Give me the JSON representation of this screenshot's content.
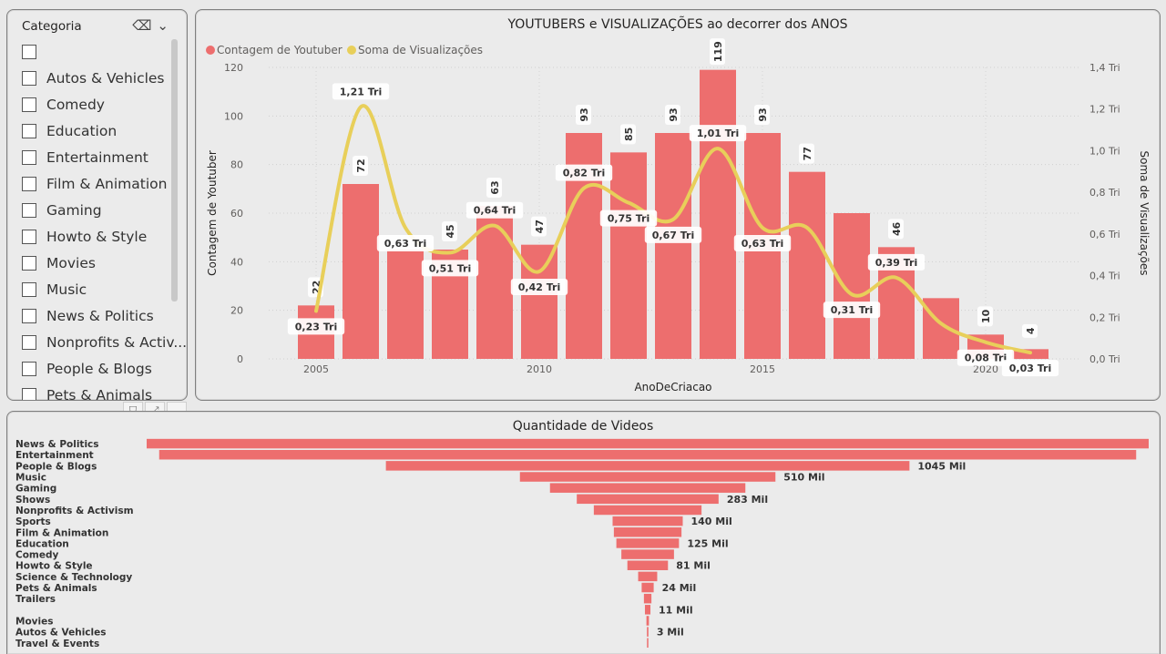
{
  "slicer": {
    "title": "Categoria",
    "items": [
      {
        "label": ""
      },
      {
        "label": "Autos & Vehicles"
      },
      {
        "label": "Comedy"
      },
      {
        "label": "Education"
      },
      {
        "label": "Entertainment"
      },
      {
        "label": "Film & Animation"
      },
      {
        "label": "Gaming"
      },
      {
        "label": "Howto & Style"
      },
      {
        "label": "Movies"
      },
      {
        "label": "Music"
      },
      {
        "label": "News & Politics"
      },
      {
        "label": "Nonprofits & Activ..."
      },
      {
        "label": "People & Blogs"
      },
      {
        "label": "Pets & Animals"
      }
    ],
    "icons": [
      "eraser-icon",
      "chevron-down-icon"
    ]
  },
  "visual_toolbar": [
    "filter-icon",
    "focus-mode-icon",
    "more-options-icon"
  ],
  "colors": {
    "bar": "#ED6E6E",
    "line": "#E8CF5A",
    "panel": "#EBEBEB"
  },
  "chart_data": [
    {
      "type": "bar",
      "subtype": "combo bar + line (dual axis)",
      "title": "YOUTUBERS e VISUALIZAÇÕES ao decorrer dos ANOS",
      "xlabel": "AnoDeCriacao",
      "ylabel": "Contagem de Youtuber",
      "y2label": "Soma de Visualizações",
      "legend_position": "top-left",
      "grid": true,
      "x": [
        2005,
        2006,
        2007,
        2008,
        2009,
        2010,
        2011,
        2012,
        2013,
        2014,
        2015,
        2016,
        2017,
        2018,
        2019,
        2020,
        2021
      ],
      "x_ticks": [
        "2005",
        "2010",
        "2015",
        "2020"
      ],
      "ylim": [
        0,
        120
      ],
      "y_ticks": [
        "0",
        "20",
        "40",
        "60",
        "80",
        "100",
        "120"
      ],
      "y2lim": [
        0,
        1.4
      ],
      "y2_ticks": [
        "0,0 Tri",
        "0,2 Tri",
        "0,4 Tri",
        "0,6 Tri",
        "0,8 Tri",
        "1,0 Tri",
        "1,2 Tri",
        "1,4 Tri"
      ],
      "series": [
        {
          "name": "Contagem de Youtuber",
          "kind": "bar",
          "values": [
            22,
            72,
            45,
            45,
            63,
            47,
            93,
            85,
            93,
            119,
            93,
            77,
            60,
            46,
            25,
            10,
            4
          ],
          "labels": [
            "22",
            "72",
            "",
            "45",
            "63",
            "47",
            "93",
            "85",
            "93",
            "119",
            "93",
            "77",
            "",
            "46",
            "",
            "10",
            "4"
          ]
        },
        {
          "name": "Soma de Visualizações",
          "kind": "line",
          "values": [
            0.23,
            1.21,
            0.63,
            0.51,
            0.64,
            0.42,
            0.82,
            0.75,
            0.67,
            1.01,
            0.63,
            0.63,
            0.31,
            0.39,
            0.17,
            0.08,
            0.03
          ],
          "labels": [
            "0,23 Tri",
            "1,21 Tri",
            "0,63 Tri",
            "0,51 Tri",
            "0,64 Tri",
            "0,42 Tri",
            "0,82 Tri",
            "0,75 Tri",
            "0,67 Tri",
            "1,01 Tri",
            "0,63 Tri",
            "",
            "0,31 Tri",
            "0,39 Tri",
            "",
            "0,08 Tri",
            "0,03 Tri"
          ]
        }
      ]
    },
    {
      "type": "bar",
      "subtype": "funnel",
      "title": "Quantidade de Videos",
      "categories": [
        "News & Politics",
        "Entertainment",
        "People & Blogs",
        "Music",
        "Gaming",
        "Shows",
        "Nonprofits & Activism",
        "Sports",
        "Film & Animation",
        "Education",
        "Comedy",
        "Howto & Style",
        "Science & Technology",
        "Pets & Animals",
        "Trailers",
        "",
        "Movies",
        "Autos & Vehicles",
        "Travel & Events"
      ],
      "values": [
        2000,
        1950,
        1045,
        510,
        390,
        283,
        215,
        140,
        135,
        125,
        105,
        81,
        38,
        24,
        15,
        11,
        5,
        3,
        1
      ],
      "unit": "Mil",
      "labels": [
        "",
        "",
        "1045 Mil",
        "510 Mil",
        "",
        "283 Mil",
        "",
        "140 Mil",
        "",
        "125 Mil",
        "",
        "81 Mil",
        "",
        "24 Mil",
        "",
        "11 Mil",
        "",
        "3 Mil",
        ""
      ]
    }
  ]
}
